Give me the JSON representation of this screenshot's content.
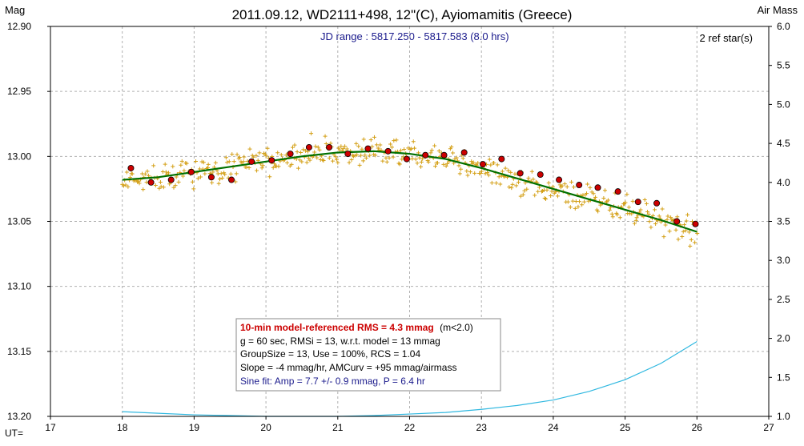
{
  "chart_data": {
    "type": "scatter",
    "title": "2011.09.12, WD2111+498, 12\"(C), Ayiomamitis (Greece)",
    "subtitle": "JD range : 5817.250 - 5817.583 (8.0 hrs)",
    "ref_stars": "2 ref star(s)",
    "ylabel_left": "Mag",
    "ylabel_right": "Air Mass",
    "xlabel": "UT=",
    "xlim": [
      17,
      27
    ],
    "ylim_left": [
      13.2,
      12.9
    ],
    "ylim_right": [
      1.0,
      6.0
    ],
    "x_ticks": [
      "17",
      "18",
      "19",
      "20",
      "21",
      "22",
      "23",
      "24",
      "25",
      "26",
      "27"
    ],
    "y_ticks_left": [
      "12.90",
      "12.95",
      "13.00",
      "13.05",
      "13.10",
      "13.15",
      "13.20"
    ],
    "y_ticks_right": [
      "6.0",
      "5.5",
      "5.0",
      "4.5",
      "4.0",
      "3.5",
      "3.0",
      "2.5",
      "2.0",
      "1.5",
      "1.0"
    ],
    "grid": true,
    "colors": {
      "raw_points": "#d4a017",
      "binned_points": "#cc0000",
      "fit_line": "#007000",
      "airmass_line": "#30b8e0",
      "grid": "#b0b0b0",
      "rms_text": "#cc0000",
      "sine_text": "#1a1a8c",
      "subtitle_text": "#1a1a8c"
    },
    "binned": {
      "x": [
        18.12,
        18.4,
        18.68,
        18.96,
        19.24,
        19.52,
        19.8,
        20.08,
        20.34,
        20.6,
        20.88,
        21.14,
        21.42,
        21.7,
        21.96,
        22.22,
        22.48,
        22.76,
        23.02,
        23.28,
        23.54,
        23.82,
        24.08,
        24.36,
        24.62,
        24.9,
        25.18,
        25.44,
        25.72,
        25.98
      ],
      "y": [
        13.009,
        13.02,
        13.018,
        13.012,
        13.016,
        13.018,
        13.004,
        13.003,
        12.998,
        12.993,
        12.993,
        12.998,
        12.994,
        12.996,
        13.002,
        12.999,
        12.999,
        12.997,
        13.006,
        13.002,
        13.013,
        13.014,
        13.018,
        13.022,
        13.024,
        13.027,
        13.035,
        13.036,
        13.05,
        13.052
      ]
    },
    "fit": {
      "x": [
        18.0,
        18.5,
        19.0,
        19.5,
        20.0,
        20.5,
        21.0,
        21.5,
        22.0,
        22.5,
        23.0,
        23.5,
        24.0,
        24.5,
        25.0,
        25.5,
        26.0
      ],
      "y": [
        13.018,
        13.016,
        13.012,
        13.008,
        13.004,
        13.0,
        12.997,
        12.996,
        12.998,
        13.002,
        13.009,
        13.017,
        13.025,
        13.033,
        13.041,
        13.049,
        13.058
      ]
    },
    "airmass": {
      "x": [
        18.0,
        18.5,
        19.0,
        19.5,
        20.0,
        20.5,
        21.0,
        21.5,
        22.0,
        22.5,
        23.0,
        23.5,
        24.0,
        24.5,
        25.0,
        25.5,
        26.0
      ],
      "y": [
        1.06,
        1.04,
        1.02,
        1.01,
        1.0,
        1.0,
        1.0,
        1.01,
        1.03,
        1.05,
        1.09,
        1.14,
        1.21,
        1.32,
        1.47,
        1.68,
        1.96
      ]
    },
    "raw_scatter_range": {
      "x": [
        18.0,
        26.0
      ],
      "sigma_mag": 0.013,
      "count": 500
    },
    "annotations": {
      "rms_title": "10-min model-referenced RMS = 4.3 mmag",
      "rms_cond": "(m<2.0)",
      "line2": "g = 60 sec, RMSi = 13, w.r.t. model = 13 mmag",
      "line3": "GroupSize = 13, Use = 100%, RCS = 1.04",
      "line4": "Slope = -4 mmag/hr, AMCurv = +95 mmag/airmass",
      "line5": "Sine fit: Amp = 7.7 +/- 0.9 mmag, P = 6.4 hr"
    }
  }
}
